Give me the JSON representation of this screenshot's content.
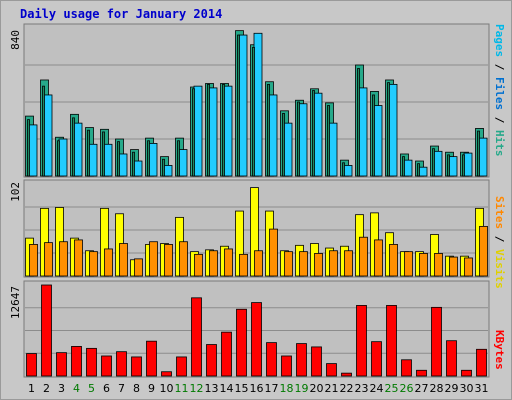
{
  "title": "Daily usage for January 2014",
  "colors": {
    "pages": "#1e8a60",
    "files": "#22ccff",
    "hits": "#26a98a",
    "visits": "#ffff00",
    "sites": "#ff9000",
    "kbytes": "#ff0000",
    "weekend_label": "#007a00",
    "weekday_label": "#000000"
  },
  "side_labels": {
    "pages": "Pages",
    "files": "Files",
    "hits": "Hits",
    "sites": "Sites",
    "visits": "Visits",
    "kbytes": "KBytes",
    "separator": " / "
  },
  "chart_data": [
    {
      "type": "bar",
      "categories": [
        "1",
        "2",
        "3",
        "4",
        "5",
        "6",
        "7",
        "8",
        "9",
        "10",
        "11",
        "12",
        "13",
        "14",
        "15",
        "16",
        "17",
        "18",
        "19",
        "20",
        "21",
        "22",
        "23",
        "24",
        "25",
        "26",
        "27",
        "28",
        "29",
        "30",
        "31"
      ],
      "weekend_days": [
        "4",
        "5",
        "11",
        "12",
        "18",
        "19",
        "25",
        "26"
      ],
      "ymax_label": "840",
      "ylim": [
        0,
        840
      ],
      "series": [
        {
          "name": "Pages",
          "values": [
            320,
            510,
            200,
            330,
            260,
            250,
            195,
            135,
            200,
            95,
            200,
            495,
            520,
            520,
            800,
            730,
            520,
            355,
            420,
            485,
            400,
            75,
            610,
            460,
            530,
            110,
            70,
            155,
            120,
            120,
            255
          ]
        },
        {
          "name": "Files",
          "values": [
            290,
            460,
            210,
            300,
            180,
            180,
            125,
            85,
            185,
            60,
            150,
            510,
            500,
            510,
            800,
            810,
            460,
            300,
            410,
            470,
            300,
            60,
            500,
            400,
            520,
            90,
            50,
            140,
            110,
            130,
            215
          ]
        },
        {
          "name": "Hits",
          "values": [
            340,
            545,
            220,
            350,
            275,
            265,
            210,
            150,
            215,
            110,
            215,
            505,
            525,
            525,
            825,
            745,
            535,
            370,
            430,
            495,
            415,
            90,
            630,
            480,
            545,
            125,
            85,
            170,
            135,
            135,
            270
          ]
        }
      ]
    },
    {
      "type": "bar",
      "categories": [
        "1",
        "2",
        "3",
        "4",
        "5",
        "6",
        "7",
        "8",
        "9",
        "10",
        "11",
        "12",
        "13",
        "14",
        "15",
        "16",
        "17",
        "18",
        "19",
        "20",
        "21",
        "22",
        "23",
        "24",
        "25",
        "26",
        "27",
        "28",
        "29",
        "30",
        "31"
      ],
      "ymax_label": "102",
      "ylim": [
        0,
        102
      ],
      "series": [
        {
          "name": "Visits",
          "values": [
            42,
            75,
            76,
            42,
            28,
            75,
            69,
            18,
            35,
            36,
            65,
            27,
            29,
            33,
            72,
            98,
            72,
            28,
            34,
            36,
            31,
            33,
            68,
            70,
            48,
            27,
            27,
            46,
            22,
            22,
            75
          ]
        },
        {
          "name": "Sites",
          "values": [
            35,
            37,
            38,
            40,
            27,
            30,
            36,
            19,
            38,
            35,
            38,
            24,
            28,
            30,
            24,
            28,
            52,
            27,
            27,
            25,
            28,
            28,
            43,
            40,
            35,
            27,
            25,
            25,
            21,
            20,
            55
          ]
        }
      ]
    },
    {
      "type": "bar",
      "categories": [
        "1",
        "2",
        "3",
        "4",
        "5",
        "6",
        "7",
        "8",
        "9",
        "10",
        "11",
        "12",
        "13",
        "14",
        "15",
        "16",
        "17",
        "18",
        "19",
        "20",
        "21",
        "22",
        "23",
        "24",
        "25",
        "26",
        "27",
        "28",
        "29",
        "30",
        "31"
      ],
      "ymax_label": "12647",
      "ylim": [
        0,
        12647
      ],
      "series": [
        {
          "name": "KBytes",
          "values": [
            3115,
            12647,
            3247,
            4109,
            3843,
            2782,
            3379,
            2650,
            4838,
            593,
            2650,
            10866,
            4374,
            6095,
            9276,
            10204,
            4640,
            2782,
            4506,
            4042,
            1723,
            397,
            9806,
            4772,
            9806,
            2254,
            795,
            9541,
            4905,
            795,
            3711
          ]
        }
      ]
    }
  ]
}
